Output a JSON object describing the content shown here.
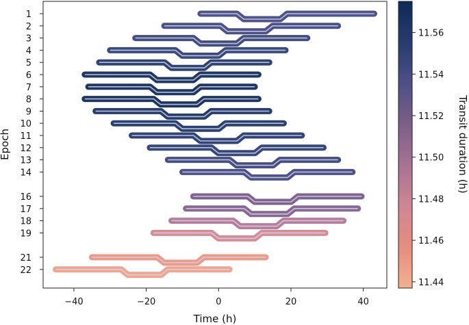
{
  "chart_data": {
    "type": "line",
    "title": "",
    "xlabel": "Time (h)",
    "ylabel": "Epoch",
    "xlim": [
      -48.5,
      46.5
    ],
    "x_ticks": [
      -40,
      -20,
      0,
      20,
      40
    ],
    "x_tick_labels": [
      "−40",
      "−20",
      "0",
      "20",
      "40"
    ],
    "epoch_labels": [
      "1",
      "2",
      "3",
      "4",
      "5",
      "6",
      "7",
      "8",
      "9",
      "10",
      "11",
      "12",
      "13",
      "14",
      "16",
      "17",
      "18",
      "19",
      "21",
      "22"
    ],
    "colorbar": {
      "label": "Transit duration (h)",
      "range": [
        11.437,
        11.575
      ],
      "ticks": [
        11.44,
        11.46,
        11.48,
        11.5,
        11.52,
        11.54,
        11.56
      ],
      "tick_labels": [
        "11.44",
        "11.46",
        "11.48",
        "11.50",
        "11.52",
        "11.54",
        "11.56"
      ],
      "colormap": [
        "#f3b08f",
        "#e58d7e",
        "#cf8693",
        "#a87294",
        "#7c5f89",
        "#4e4f86",
        "#273c6e",
        "#0f2a56"
      ]
    },
    "series": [
      {
        "epoch": 1,
        "x_start": -5,
        "x_end": 43,
        "ingress": 6,
        "egress": 18,
        "duration": 11.54
      },
      {
        "epoch": 2,
        "x_start": -15,
        "x_end": 33,
        "ingress": 1.5,
        "egress": 14,
        "duration": 11.542
      },
      {
        "epoch": 3,
        "x_start": -23,
        "x_end": 24.5,
        "ingress": -6,
        "egress": 6,
        "duration": 11.546
      },
      {
        "epoch": 4,
        "x_start": -30,
        "x_end": 18.5,
        "ingress": -11,
        "egress": 1,
        "duration": 11.551
      },
      {
        "epoch": 5,
        "x_start": -33,
        "x_end": 14,
        "ingress": -14,
        "egress": -3,
        "duration": 11.557
      },
      {
        "epoch": 6,
        "x_start": -37,
        "x_end": 11,
        "ingress": -18,
        "egress": -6,
        "duration": 11.572
      },
      {
        "epoch": 7,
        "x_start": -36,
        "x_end": 10,
        "ingress": -18,
        "egress": -6,
        "duration": 11.573
      },
      {
        "epoch": 8,
        "x_start": -37,
        "x_end": 11,
        "ingress": -17,
        "egress": -5,
        "duration": 11.574
      },
      {
        "epoch": 9,
        "x_start": -34,
        "x_end": 14,
        "ingress": -15,
        "egress": -3,
        "duration": 11.566
      },
      {
        "epoch": 10,
        "x_start": -29,
        "x_end": 18,
        "ingress": -11,
        "egress": 1,
        "duration": 11.561
      },
      {
        "epoch": 11,
        "x_start": -24,
        "x_end": 23,
        "ingress": -6,
        "egress": 6,
        "duration": 11.556
      },
      {
        "epoch": 12,
        "x_start": -19,
        "x_end": 29,
        "ingress": -1,
        "egress": 11,
        "duration": 11.552
      },
      {
        "epoch": 13,
        "x_start": -14,
        "x_end": 33,
        "ingress": 4,
        "egress": 16,
        "duration": 11.545
      },
      {
        "epoch": 14,
        "x_start": -10,
        "x_end": 37,
        "ingress": 8,
        "egress": 20,
        "duration": 11.541
      },
      {
        "epoch": 16,
        "x_start": -7,
        "x_end": 39.5,
        "ingress": 9,
        "egress": 21,
        "duration": 11.518
      },
      {
        "epoch": 17,
        "x_start": -9,
        "x_end": 38.5,
        "ingress": 8,
        "egress": 20,
        "duration": 11.514
      },
      {
        "epoch": 18,
        "x_start": -13,
        "x_end": 34.5,
        "ingress": 5,
        "egress": 17,
        "duration": 11.492
      },
      {
        "epoch": 19,
        "x_start": -18,
        "x_end": 29.5,
        "ingress": -1,
        "egress": 11,
        "duration": 11.475
      },
      {
        "epoch": 21,
        "x_start": -35,
        "x_end": 13,
        "ingress": -16,
        "egress": -5,
        "duration": 11.452
      },
      {
        "epoch": 22,
        "x_start": -45,
        "x_end": 3,
        "ingress": -26,
        "egress": -15,
        "duration": 11.445
      }
    ]
  }
}
